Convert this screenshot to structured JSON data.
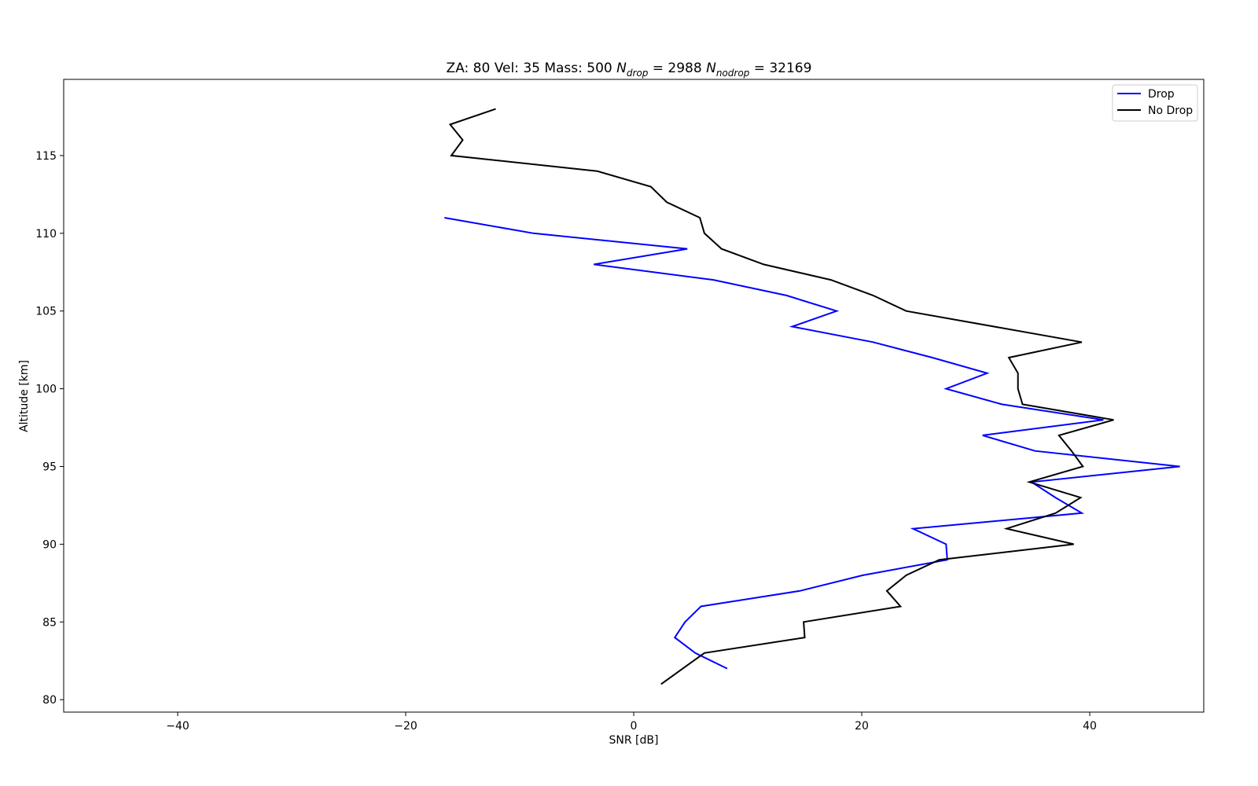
{
  "chart_data": {
    "type": "line",
    "title": {
      "prefix": "ZA: 80 Vel: 35 Mass: 500 ",
      "n_drop_symbol": "N",
      "n_drop_sub": "drop",
      "n_drop_value": " = 2988 ",
      "n_nodrop_symbol": "N",
      "n_nodrop_sub": "nodrop",
      "n_nodrop_value": " = 32169"
    },
    "xlabel": "SNR [dB]",
    "ylabel": "Altitude [km]",
    "xlim": [
      -50,
      50
    ],
    "ylim": [
      79.2,
      119.9
    ],
    "xticks": [
      -40,
      -20,
      0,
      20,
      40
    ],
    "xtick_labels": [
      "−40",
      "−20",
      "0",
      "20",
      "40"
    ],
    "yticks": [
      80,
      85,
      90,
      95,
      100,
      105,
      110,
      115
    ],
    "ytick_labels": [
      "80",
      "85",
      "90",
      "95",
      "100",
      "105",
      "110",
      "115"
    ],
    "grid": false,
    "legend_position": "upper-right",
    "series": [
      {
        "name": "Drop",
        "color": "#0000ff",
        "points": [
          [
            8.2,
            82
          ],
          [
            5.4,
            83
          ],
          [
            3.6,
            84
          ],
          [
            4.5,
            85
          ],
          [
            5.9,
            86
          ],
          [
            14.6,
            87
          ],
          [
            20.1,
            88
          ],
          [
            27.5,
            89
          ],
          [
            27.4,
            90
          ],
          [
            24.5,
            91
          ],
          [
            39.3,
            92
          ],
          [
            37.0,
            93
          ],
          [
            34.9,
            94
          ],
          [
            47.9,
            95
          ],
          [
            35.2,
            96
          ],
          [
            30.6,
            97
          ],
          [
            41.2,
            98
          ],
          [
            32.3,
            99
          ],
          [
            27.4,
            100
          ],
          [
            31.0,
            101
          ],
          [
            26.2,
            102
          ],
          [
            21.0,
            103
          ],
          [
            13.9,
            104
          ],
          [
            17.8,
            105
          ],
          [
            13.4,
            106
          ],
          [
            7.0,
            107
          ],
          [
            -3.5,
            108
          ],
          [
            4.7,
            109
          ],
          [
            -8.8,
            110
          ],
          [
            -16.6,
            111
          ]
        ]
      },
      {
        "name": "No Drop",
        "color": "#000000",
        "points": [
          [
            2.4,
            81
          ],
          [
            6.2,
            83
          ],
          [
            15.0,
            84
          ],
          [
            14.9,
            85
          ],
          [
            23.4,
            86
          ],
          [
            22.2,
            87
          ],
          [
            23.9,
            88
          ],
          [
            26.8,
            89
          ],
          [
            38.6,
            90
          ],
          [
            32.7,
            91
          ],
          [
            37.0,
            92
          ],
          [
            39.2,
            93
          ],
          [
            34.7,
            94
          ],
          [
            39.4,
            95
          ],
          [
            38.4,
            96
          ],
          [
            37.3,
            97
          ],
          [
            42.1,
            98
          ],
          [
            34.1,
            99
          ],
          [
            33.7,
            100
          ],
          [
            33.7,
            101
          ],
          [
            32.9,
            102
          ],
          [
            39.3,
            103
          ],
          [
            23.9,
            105
          ],
          [
            21.0,
            106
          ],
          [
            17.3,
            107
          ],
          [
            11.4,
            108
          ],
          [
            7.7,
            109
          ],
          [
            6.2,
            110
          ],
          [
            5.8,
            111
          ],
          [
            2.9,
            112
          ],
          [
            1.5,
            113
          ],
          [
            -3.2,
            114
          ],
          [
            -16.0,
            115
          ],
          [
            -15.0,
            116
          ],
          [
            -16.1,
            117
          ],
          [
            -12.1,
            118
          ]
        ]
      }
    ]
  }
}
